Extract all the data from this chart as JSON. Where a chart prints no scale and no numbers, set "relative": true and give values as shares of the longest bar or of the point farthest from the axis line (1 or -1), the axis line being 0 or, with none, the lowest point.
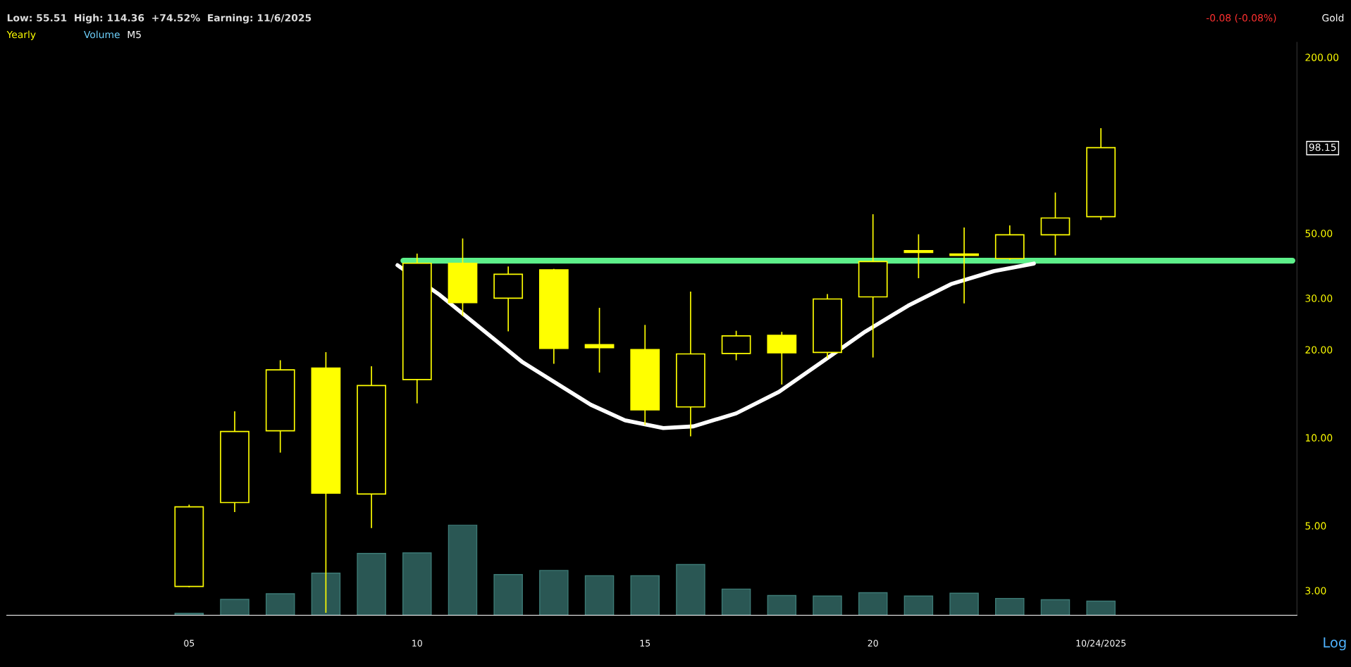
{
  "chart_data": [
    {
      "type": "candlestick",
      "title": "Yearly",
      "subtitle": "Low: 55.51  High: 114.36  +74.52%  Earning: 11/6/2025",
      "annotations": [
        "-0.08 (-0.08%)",
        "Gold",
        "Volume",
        "M5",
        "Log",
        "98.15"
      ],
      "x": [
        2005,
        2006,
        2007,
        2008,
        2009,
        2010,
        2011,
        2012,
        2013,
        2014,
        2015,
        2016,
        2017,
        2018,
        2019,
        2020,
        2021,
        2022,
        2023,
        2024,
        2025
      ],
      "ohlc": [
        [
          3.1,
          5.9,
          3.08,
          5.8
        ],
        [
          6.0,
          12.3,
          5.57,
          10.5
        ],
        [
          10.56,
          18.4,
          8.89,
          17.05
        ],
        [
          17.3,
          19.6,
          2.52,
          6.46
        ],
        [
          6.42,
          17.55,
          4.91,
          15.08
        ],
        [
          15.8,
          42.6,
          13.1,
          39.5
        ],
        [
          39.5,
          48.0,
          26.05,
          28.95
        ],
        [
          30.0,
          38.5,
          23.1,
          36.2
        ],
        [
          37.5,
          37.8,
          17.9,
          20.2
        ],
        [
          20.8,
          27.8,
          16.7,
          20.3
        ],
        [
          20.0,
          24.3,
          11.05,
          12.44
        ],
        [
          12.74,
          31.6,
          10.1,
          19.34
        ],
        [
          19.4,
          23.2,
          18.4,
          22.3
        ],
        [
          22.4,
          23.0,
          15.2,
          19.5
        ],
        [
          19.56,
          31.0,
          18.7,
          29.8
        ],
        [
          30.3,
          58.1,
          18.8,
          40.0
        ],
        [
          43.6,
          49.6,
          35.1,
          43.0
        ],
        [
          42.5,
          52.3,
          28.8,
          42.0
        ],
        [
          41.0,
          53.2,
          40.5,
          49.4
        ],
        [
          49.4,
          68.9,
          42.0,
          56.4
        ],
        [
          57.0,
          114.36,
          55.51,
          98.15
        ]
      ],
      "color": "#ffff00",
      "series": [
        {
          "type": "line",
          "color": "#5df08a",
          "x": [
            2009.7,
            2029.2
          ],
          "values": [
            40.3,
            40.3
          ]
        },
        {
          "type": "line",
          "color": "#ffffff",
          "x": [
            2009.57,
            2010.47,
            2012.3,
            2013.81,
            2014.56,
            2015.4,
            2016.06,
            2017.0,
            2017.94,
            2018.89,
            2019.83,
            2020.77,
            2021.71,
            2022.65,
            2023.53
          ],
          "values": [
            38.9,
            31.0,
            18.19,
            12.96,
            11.47,
            10.79,
            10.93,
            12.11,
            14.35,
            18.19,
            23.06,
            28.27,
            33.5,
            37.1,
            39.4
          ]
        }
      ],
      "log": "y",
      "ylim": [
        2.47,
        225
      ],
      "yticks": [
        {
          "value": 3,
          "label": "3.00"
        },
        {
          "value": 5,
          "label": "5.00"
        },
        {
          "value": 10,
          "label": "10.00"
        },
        {
          "value": 20,
          "label": "20.00"
        },
        {
          "value": 30,
          "label": "30.00"
        },
        {
          "value": 50,
          "label": "50.00"
        },
        {
          "value": 200,
          "label": "200.00"
        }
      ],
      "xlim": [
        2001.0,
        2029.3
      ],
      "xticks": [
        {
          "value": 2005,
          "label": "05"
        },
        {
          "value": 2010,
          "label": "10"
        },
        {
          "value": 2015,
          "label": "15"
        },
        {
          "value": 2020,
          "label": "20"
        },
        {
          "value": 2025,
          "label": "10/24/2025"
        }
      ]
    },
    {
      "type": "bar",
      "relative": true,
      "color": "#2a5754",
      "x": [
        2005,
        2006,
        2007,
        2008,
        2009,
        2010,
        2011,
        2012,
        2013,
        2014,
        2015,
        2016,
        2017,
        2018,
        2019,
        2020,
        2021,
        2022,
        2023,
        2024,
        2025
      ],
      "xlim": [
        2001.0,
        2029.3
      ],
      "values": [
        0.022,
        0.175,
        0.237,
        0.465,
        0.683,
        0.689,
        1,
        0.449,
        0.495,
        0.437,
        0.437,
        0.56,
        0.289,
        0.218,
        0.212,
        0.249,
        0.212,
        0.243,
        0.186,
        0.171,
        0.156
      ]
    }
  ]
}
